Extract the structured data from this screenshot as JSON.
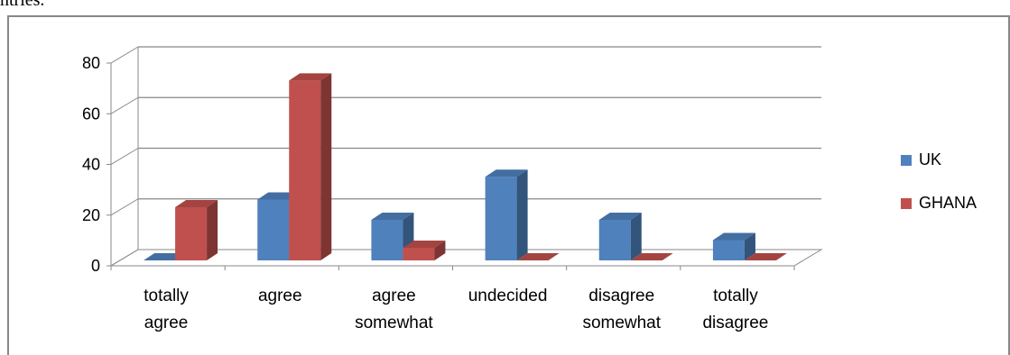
{
  "caption_fragment": "ntries.",
  "chart_data": {
    "type": "bar",
    "categories": [
      [
        "totally",
        "agree"
      ],
      [
        "agree"
      ],
      [
        "agree",
        "somewhat"
      ],
      [
        "undecided"
      ],
      [
        "disagree",
        "somewhat"
      ],
      [
        "totally",
        "disagree"
      ]
    ],
    "series": [
      {
        "name": "UK",
        "values": [
          0,
          24,
          16,
          33,
          16,
          8
        ],
        "color": "#4f81bd"
      },
      {
        "name": "GHANA",
        "values": [
          21,
          71,
          5,
          0,
          0,
          0
        ],
        "color": "#c0504d"
      }
    ],
    "ylim": [
      0,
      80
    ],
    "yticks": [
      "0",
      "20",
      "40",
      "60",
      "80"
    ],
    "grid": true,
    "legend": "right",
    "style": "3d-clustered-column"
  }
}
